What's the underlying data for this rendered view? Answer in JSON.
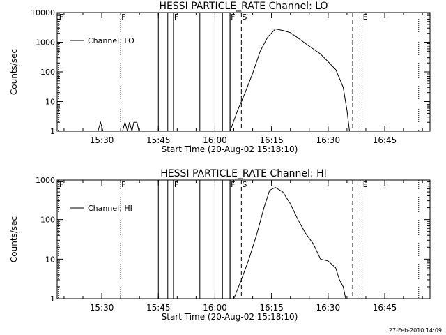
{
  "chart_data": [
    {
      "type": "line",
      "title": "HESSI PARTICLE_RATE Channel: LO",
      "xlabel": "Start Time (20-Aug-02 15:18:10)",
      "ylabel": "Counts/sec",
      "y_scale": "log",
      "ylim": [
        1,
        10000
      ],
      "y_ticks": [
        "1",
        "10",
        "100",
        "1000",
        "10000"
      ],
      "xlim": [
        "15:18:10",
        "16:57:00"
      ],
      "x_ticks": [
        "15:30",
        "15:45",
        "16:00",
        "16:15",
        "16:30",
        "16:45"
      ],
      "legend": {
        "position": "top-left",
        "entries": [
          "Channel: LO"
        ]
      },
      "grid": false,
      "series": [
        {
          "name": "Channel: LO",
          "x": [
            "15:29:00",
            "15:29:40",
            "15:30:20",
            "15:31:00",
            "15:35:30",
            "15:36:10",
            "15:36:50",
            "15:37:20",
            "15:38:00",
            "15:38:30",
            "15:39:20",
            "15:39:50",
            "16:04:00",
            "16:06:00",
            "16:08:00",
            "16:10:00",
            "16:12:00",
            "16:14:00",
            "16:16:00",
            "16:18:00",
            "16:20:00",
            "16:22:00",
            "16:24:00",
            "16:26:00",
            "16:28:00",
            "16:30:00",
            "16:32:00",
            "16:34:00",
            "16:35:00",
            "16:35:40"
          ],
          "values": [
            1,
            2,
            1,
            1,
            1,
            2,
            1,
            2,
            1,
            2,
            2,
            1,
            1,
            5,
            20,
            90,
            500,
            1500,
            2800,
            2500,
            2100,
            1400,
            900,
            600,
            400,
            220,
            120,
            30,
            5,
            1
          ]
        }
      ],
      "annotations": {
        "markers": [
          {
            "label": "F",
            "time": "15:18:30",
            "style": "dotted"
          },
          {
            "label": "F",
            "time": "15:35:00",
            "style": "dotted"
          },
          {
            "label": "F",
            "time": "15:49:00",
            "style": "solid"
          },
          {
            "label": "F",
            "time": "16:04:00",
            "style": "solid"
          },
          {
            "label": "S",
            "time": "16:07:00",
            "style": "dashed"
          },
          {
            "label": "",
            "time": "16:36:30",
            "style": "dashed"
          },
          {
            "label": "E",
            "time": "16:39:00",
            "style": "dotted"
          },
          {
            "label": "",
            "time": "16:54:00",
            "style": "dotted"
          }
        ],
        "bands": [
          {
            "start": "15:45:00",
            "end": "15:47:30"
          },
          {
            "start": "15:56:00",
            "end": "16:00:00"
          },
          {
            "start": "16:02:00",
            "end": "16:04:00"
          }
        ]
      }
    },
    {
      "type": "line",
      "title": "HESSI PARTICLE_RATE Channel: HI",
      "xlabel": "Start Time (20-Aug-02 15:18:10)",
      "ylabel": "Counts/sec",
      "y_scale": "log",
      "ylim": [
        1,
        1000
      ],
      "y_ticks": [
        "1",
        "10",
        "100",
        "1000"
      ],
      "xlim": [
        "15:18:10",
        "16:57:00"
      ],
      "x_ticks": [
        "15:30",
        "15:45",
        "16:00",
        "16:15",
        "16:30",
        "16:45"
      ],
      "legend": {
        "position": "top-left",
        "entries": [
          "Channel: HI"
        ]
      },
      "grid": false,
      "series": [
        {
          "name": "Channel: HI",
          "x": [
            "16:05:00",
            "16:07:00",
            "16:09:00",
            "16:11:00",
            "16:13:00",
            "16:14:30",
            "16:16:00",
            "16:18:00",
            "16:20:00",
            "16:22:00",
            "16:24:00",
            "16:26:00",
            "16:28:00",
            "16:30:00",
            "16:32:00",
            "16:33:00",
            "16:34:00",
            "16:34:40"
          ],
          "values": [
            1,
            3,
            10,
            40,
            200,
            550,
            650,
            500,
            250,
            100,
            45,
            25,
            10,
            9,
            6,
            3,
            2,
            1
          ]
        }
      ],
      "annotations": {
        "markers": [
          {
            "label": "F",
            "time": "15:18:30",
            "style": "dotted"
          },
          {
            "label": "F",
            "time": "15:35:00",
            "style": "dotted"
          },
          {
            "label": "F",
            "time": "15:49:00",
            "style": "solid"
          },
          {
            "label": "F",
            "time": "16:04:00",
            "style": "solid"
          },
          {
            "label": "S",
            "time": "16:07:00",
            "style": "dashed"
          },
          {
            "label": "",
            "time": "16:36:30",
            "style": "dashed"
          },
          {
            "label": "E",
            "time": "16:39:00",
            "style": "dotted"
          },
          {
            "label": "",
            "time": "16:54:00",
            "style": "dotted"
          }
        ],
        "bands": [
          {
            "start": "15:45:00",
            "end": "15:47:30"
          },
          {
            "start": "15:56:00",
            "end": "16:00:00"
          },
          {
            "start": "16:02:00",
            "end": "16:04:00"
          }
        ]
      }
    }
  ],
  "footer": {
    "stamp": "27-Feb-2010 14:09"
  }
}
